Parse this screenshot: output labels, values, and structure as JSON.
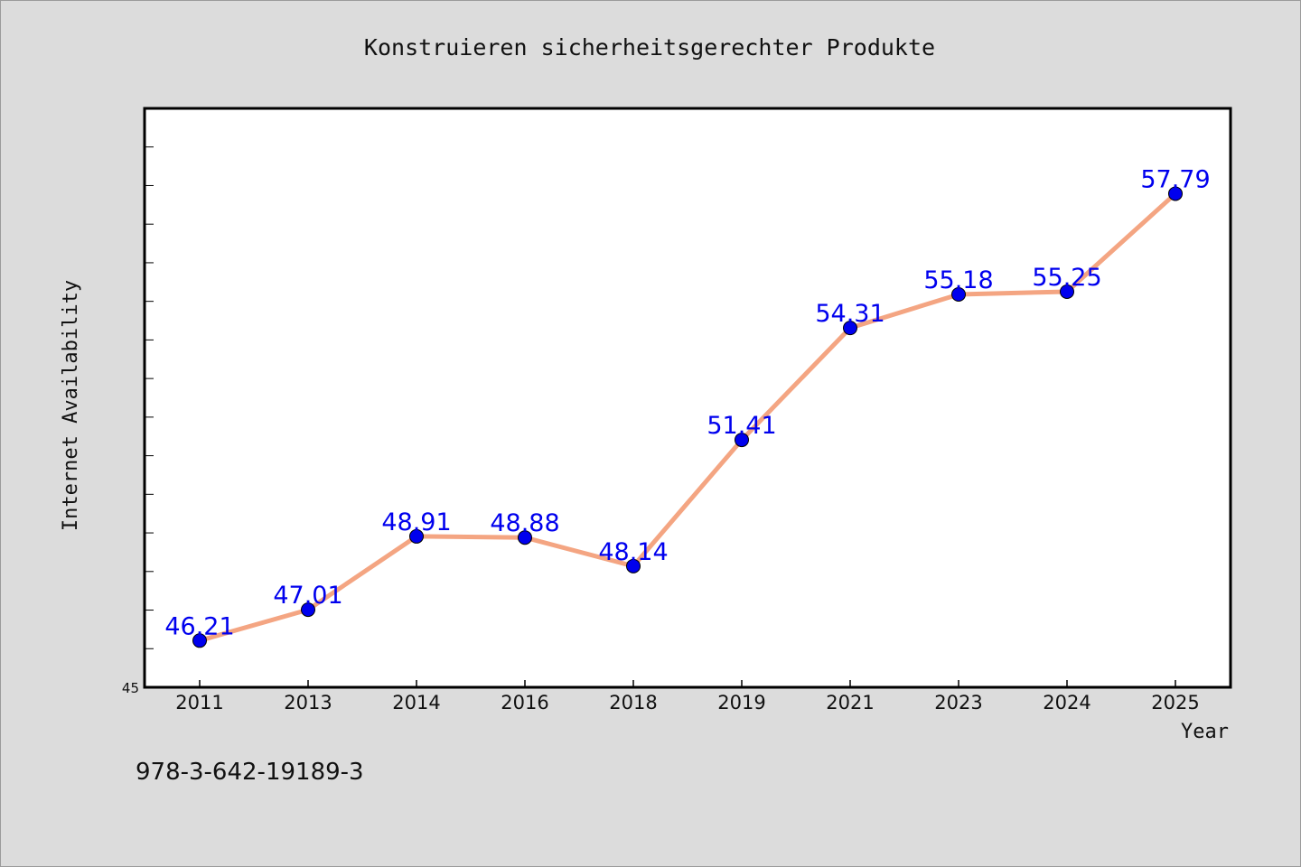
{
  "chart_data": {
    "type": "line",
    "title": "Konstruieren sicherheitsgerechter Produkte",
    "xlabel": "Year",
    "ylabel": "Internet Availability",
    "x": [
      "2011",
      "2013",
      "2014",
      "2016",
      "2018",
      "2019",
      "2021",
      "2023",
      "2024",
      "2025"
    ],
    "series": [
      {
        "values": [
          46.21,
          47.01,
          48.91,
          48.88,
          48.14,
          51.41,
          54.31,
          55.18,
          55.25,
          57.79
        ],
        "data_labels": [
          "46.21",
          "47.01",
          "48.91",
          "48.88",
          "48.14",
          "51.41",
          "54.31",
          "55.18",
          "55.25",
          "57.79"
        ],
        "line_color": "#f4a582",
        "marker_color": "#0000ee",
        "label_color": "#0000ee"
      }
    ],
    "ylim": [
      45,
      60
    ],
    "y_tick_labels": [
      "45"
    ],
    "grid": false,
    "legend": "none"
  },
  "footer_text": "978-3-642-19189-3",
  "colors": {
    "background": "#dcdcdc",
    "plot_background": "#ffffff",
    "axis": "#000000"
  }
}
